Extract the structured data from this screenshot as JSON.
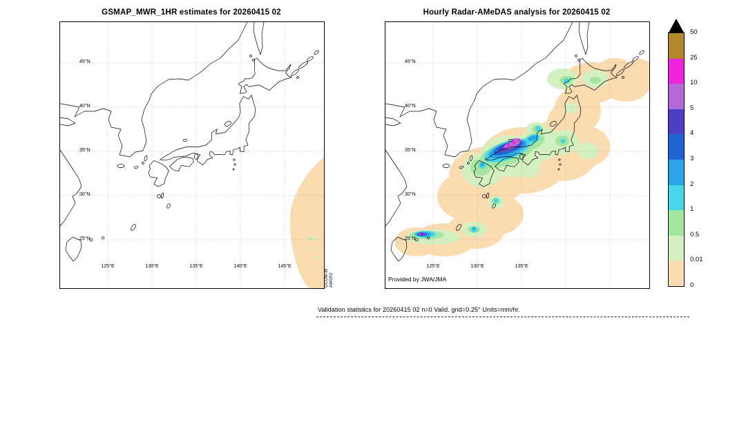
{
  "left_panel": {
    "title": "GSMAP_MWR_1HR estimates for 20260415 02",
    "lat_labels": [
      "45°N",
      "40°N",
      "35°N",
      "30°N",
      "25°N"
    ],
    "lon_labels": [
      "125°E",
      "130°E",
      "135°E",
      "140°E",
      "145°E"
    ],
    "satellite_label": [
      "GCOM-W",
      "AMSR2"
    ]
  },
  "right_panel": {
    "title": "Hourly Radar-AMeDAS analysis for 20260415 02",
    "lat_labels": [
      "45°N",
      "40°N",
      "35°N",
      "30°N",
      "25°N"
    ],
    "lon_labels": [
      "125°E",
      "130°E",
      "135°E"
    ],
    "credit": "Provided by JWA/JMA"
  },
  "colorbar": {
    "tick_labels": [
      "50",
      "25",
      "10",
      "5",
      "4",
      "3",
      "2",
      "1",
      "0.5",
      "0.01",
      "0"
    ],
    "segment_colors_top_to_bottom": [
      "#b5872c",
      "#ef24dc",
      "#b468d9",
      "#4b41c6",
      "#2063d3",
      "#2aa3e8",
      "#46d5e9",
      "#a2e6a0",
      "#d4f0c1",
      "#fbdcb0"
    ],
    "overflow_triangle_color": "#000000"
  },
  "footer": {
    "stats_line": "Validation statistics for 20260415 02  n=0 Valid. grid=0.25° Units=mm/hr."
  }
}
